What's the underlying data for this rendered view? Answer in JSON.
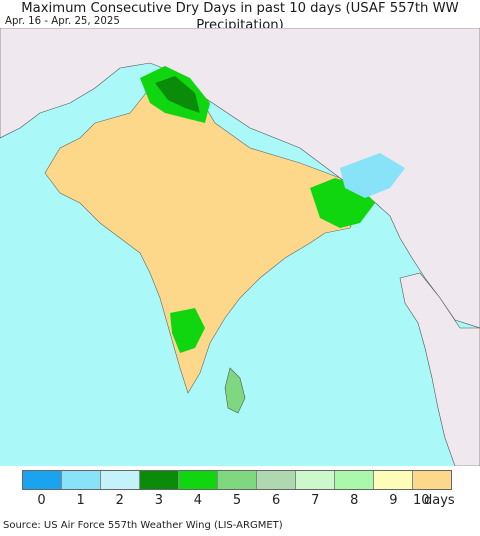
{
  "title": "Maximum Consecutive Dry Days in past 10 days (USAF 557th WW Precipitation)",
  "subtitle": "Apr. 16 - Apr. 25, 2025",
  "legend": {
    "colors": [
      "#1aa3ee",
      "#88e3f8",
      "#c4f2fb",
      "#0a8c0a",
      "#10d610",
      "#7fd87f",
      "#b0d8b0",
      "#ccf8cc",
      "#aaf8aa",
      "#fdfcb8",
      "#fdd88a"
    ],
    "labels": [
      "0",
      "1",
      "2",
      "3",
      "4",
      "5",
      "6",
      "7",
      "8",
      "9",
      "10"
    ],
    "units": "days"
  },
  "colors": {
    "ocean": "#aaf8f8",
    "outside_land": "#efe8ef",
    "dry_land": "#fdd88a"
  },
  "source": "Source: US Air Force 557th Weather Wing (LIS-ARGMET)"
}
